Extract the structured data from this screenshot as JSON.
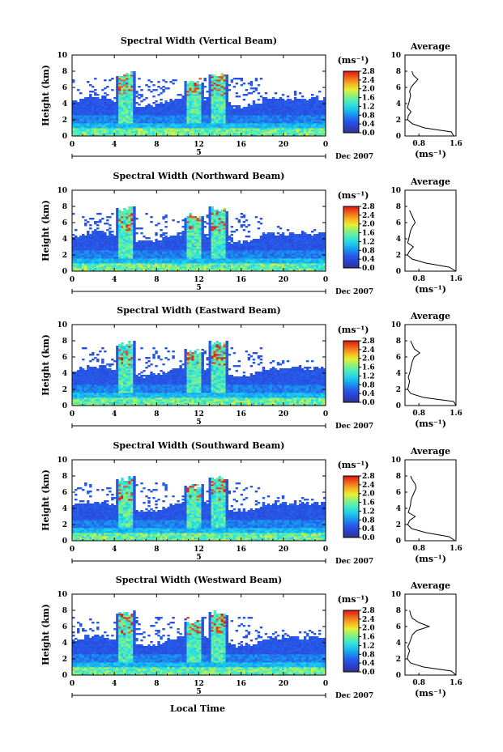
{
  "figure": {
    "xlabel": "Local Time",
    "date_label": "Dec 2007",
    "date_tick": "5",
    "avg_title": "Average",
    "cbar_unit": "(ms⁻¹)",
    "avg_unit": "(ms⁻¹)"
  },
  "chart_data": [
    {
      "type": "heatmap",
      "title": "Spectral Width (Vertical Beam)",
      "xlabel": "Local Time",
      "ylabel": "Height (km)",
      "xlim": [
        0,
        24
      ],
      "ylim": [
        0,
        10
      ],
      "xticks": [
        "0",
        "4",
        "8",
        "12",
        "16",
        "20",
        "0"
      ],
      "yticks": [
        "0",
        "2",
        "4",
        "6",
        "8",
        "10"
      ],
      "colorbar": {
        "label": "(ms⁻¹)",
        "range": [
          0,
          2.8
        ],
        "ticks": [
          "0.0",
          "0.4",
          "0.8",
          "1.2",
          "1.6",
          "2.0",
          "2.4",
          "2.8"
        ]
      },
      "average_profile": {
        "title": "Average",
        "xlabel": "(ms⁻¹)",
        "xlim": [
          0.5,
          1.6
        ],
        "xticks": [
          "0.8",
          "1.6"
        ],
        "height": [
          0,
          0.5,
          1,
          1.5,
          2,
          2.5,
          3,
          3.5,
          4,
          4.5,
          5,
          5.5,
          6,
          6.5,
          7,
          7.5,
          8
        ],
        "width": [
          1.55,
          1.5,
          0.92,
          0.66,
          0.56,
          0.57,
          0.63,
          0.55,
          0.58,
          0.6,
          0.62,
          0.6,
          0.63,
          0.7,
          0.78,
          0.68,
          0.65
        ]
      }
    },
    {
      "type": "heatmap",
      "title": "Spectral Width (Northward Beam)",
      "xlabel": "Local Time",
      "ylabel": "Height (km)",
      "xlim": [
        0,
        24
      ],
      "ylim": [
        0,
        10
      ],
      "xticks": [
        "0",
        "4",
        "8",
        "12",
        "16",
        "20",
        "0"
      ],
      "yticks": [
        "0",
        "2",
        "4",
        "6",
        "8",
        "10"
      ],
      "colorbar": {
        "label": "(ms⁻¹)",
        "range": [
          0,
          2.8
        ],
        "ticks": [
          "0.0",
          "0.4",
          "0.8",
          "1.2",
          "1.6",
          "2.0",
          "2.4",
          "2.8"
        ]
      },
      "average_profile": {
        "title": "Average",
        "xlabel": "(ms⁻¹)",
        "xlim": [
          0.5,
          1.6
        ],
        "xticks": [
          "0.8",
          "1.6"
        ],
        "height": [
          0,
          0.5,
          1,
          1.5,
          2,
          2.5,
          3,
          3.5,
          4,
          4.5,
          5,
          5.5,
          6,
          6.5,
          7,
          7.5
        ],
        "width": [
          1.6,
          1.45,
          0.95,
          0.65,
          0.55,
          0.6,
          0.68,
          0.56,
          0.58,
          0.6,
          0.62,
          0.66,
          0.72,
          0.68,
          0.64,
          0.6
        ]
      }
    },
    {
      "type": "heatmap",
      "title": "Spectral Width (Eastward Beam)",
      "xlabel": "Local Time",
      "ylabel": "Height (km)",
      "xlim": [
        0,
        24
      ],
      "ylim": [
        0,
        10
      ],
      "xticks": [
        "0",
        "4",
        "8",
        "12",
        "16",
        "20",
        "0"
      ],
      "yticks": [
        "0",
        "2",
        "4",
        "6",
        "8",
        "10"
      ],
      "colorbar": {
        "label": "(ms⁻¹)",
        "range": [
          0,
          2.8
        ],
        "ticks": [
          "0.0",
          "0.4",
          "0.8",
          "1.2",
          "1.6",
          "2.0",
          "2.4",
          "2.8"
        ]
      },
      "average_profile": {
        "title": "Average",
        "xlabel": "(ms⁻¹)",
        "xlim": [
          0.5,
          1.6
        ],
        "xticks": [
          "0.8",
          "1.6"
        ],
        "height": [
          0,
          0.5,
          1,
          1.5,
          2,
          2.5,
          3,
          3.5,
          4,
          4.5,
          5,
          5.5,
          6,
          6.5,
          7,
          7.5,
          8
        ],
        "width": [
          1.6,
          1.55,
          0.9,
          0.62,
          0.56,
          0.58,
          0.6,
          0.57,
          0.6,
          0.62,
          0.64,
          0.66,
          0.7,
          0.82,
          0.7,
          0.66,
          0.62
        ]
      }
    },
    {
      "type": "heatmap",
      "title": "Spectral Width (Southward Beam)",
      "xlabel": "Local Time",
      "ylabel": "Height (km)",
      "xlim": [
        0,
        24
      ],
      "ylim": [
        0,
        10
      ],
      "xticks": [
        "0",
        "4",
        "8",
        "12",
        "16",
        "20",
        "0"
      ],
      "yticks": [
        "0",
        "2",
        "4",
        "6",
        "8",
        "10"
      ],
      "colorbar": {
        "label": "(ms⁻¹)",
        "range": [
          0,
          2.8
        ],
        "ticks": [
          "0.0",
          "0.4",
          "0.8",
          "1.2",
          "1.6",
          "2.0",
          "2.4",
          "2.8"
        ]
      },
      "average_profile": {
        "title": "Average",
        "xlabel": "(ms⁻¹)",
        "xlim": [
          0.5,
          1.6
        ],
        "xticks": [
          "0.8",
          "1.6"
        ],
        "height": [
          0,
          0.5,
          1,
          1.5,
          2,
          2.5,
          3,
          3.5,
          4,
          4.5,
          5,
          5.5,
          6,
          6.5,
          7,
          7.5,
          8
        ],
        "width": [
          1.58,
          1.45,
          0.95,
          0.64,
          0.56,
          0.6,
          0.72,
          0.57,
          0.6,
          0.62,
          0.63,
          0.66,
          0.7,
          0.74,
          0.72,
          0.66,
          0.62
        ]
      }
    },
    {
      "type": "heatmap",
      "title": "Spectral Width (Westward Beam)",
      "xlabel": "Local Time",
      "ylabel": "Height (km)",
      "xlim": [
        0,
        24
      ],
      "ylim": [
        0,
        10
      ],
      "xticks": [
        "0",
        "4",
        "8",
        "12",
        "16",
        "20",
        "0"
      ],
      "yticks": [
        "0",
        "2",
        "4",
        "6",
        "8",
        "10"
      ],
      "colorbar": {
        "label": "(ms⁻¹)",
        "range": [
          0,
          2.8
        ],
        "ticks": [
          "0.0",
          "0.4",
          "0.8",
          "1.2",
          "1.6",
          "2.0",
          "2.4",
          "2.8"
        ]
      },
      "average_profile": {
        "title": "Average",
        "xlabel": "(ms⁻¹)",
        "xlim": [
          0.5,
          1.6
        ],
        "xticks": [
          "0.8",
          "1.6"
        ],
        "height": [
          0,
          0.5,
          1,
          1.5,
          2,
          2.5,
          3,
          3.5,
          4,
          4.5,
          5,
          5.5,
          6,
          6.5,
          7,
          7.5,
          8
        ],
        "width": [
          1.6,
          1.5,
          0.9,
          0.62,
          0.55,
          0.57,
          0.6,
          0.56,
          0.6,
          0.63,
          0.66,
          0.75,
          1.02,
          0.8,
          0.66,
          0.62,
          0.6
        ]
      }
    }
  ]
}
